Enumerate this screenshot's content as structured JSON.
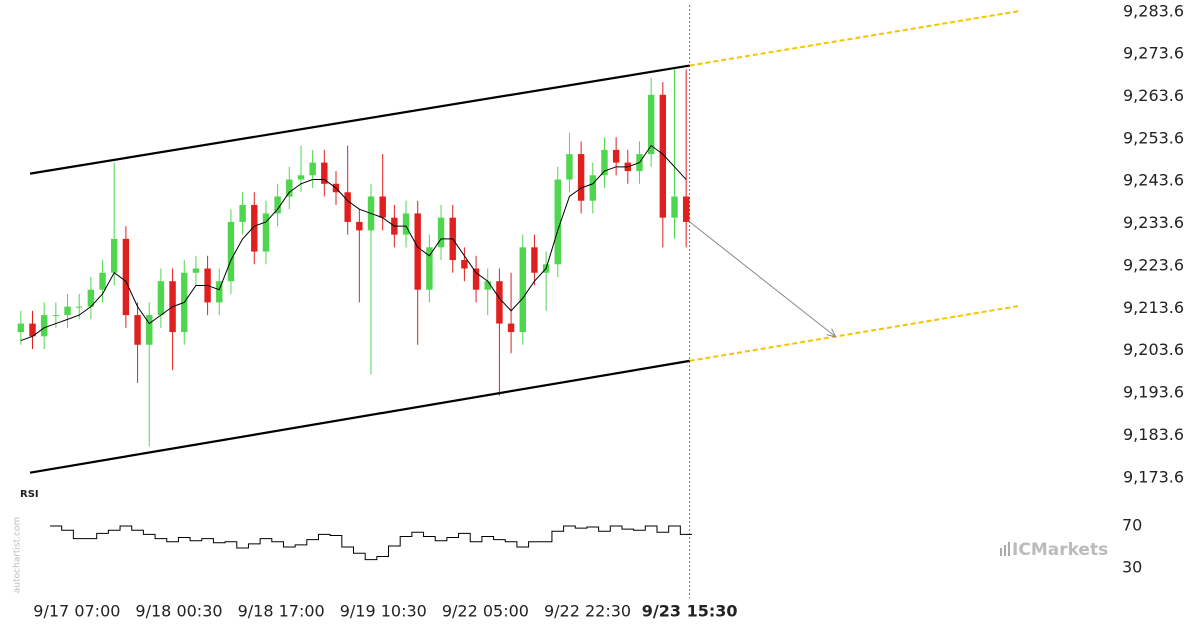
{
  "chart_data": {
    "type": "candlestick",
    "candles": {
      "color_up": "#4fd64f",
      "color_down": "#e0201f",
      "x": [
        0.5,
        1.5,
        2.5,
        3.5,
        4.5,
        5.5,
        6.5,
        7.5,
        8.5,
        9.5,
        10.5,
        11.5,
        12.5,
        13.5,
        14.5,
        15.5,
        16.5,
        17.5,
        18.5,
        19.5,
        20.5,
        21.5,
        22.5,
        23.5,
        24.5,
        25.5,
        26.5,
        27.5,
        28.5,
        29.5,
        30.5,
        31.5,
        32.5,
        33.5,
        34.5,
        35.5,
        36.5,
        37.5,
        38.5,
        39.5,
        40.5,
        41.5,
        42.5,
        43.5,
        44.5,
        45.5,
        46.5,
        47.5,
        48.5,
        49.5,
        50.5,
        51.5,
        52.5,
        53.5,
        54.5,
        55.5,
        56.5,
        57.5
      ],
      "open": [
        9208,
        9210,
        9207,
        9212,
        9212,
        9214,
        9214,
        9218,
        9222,
        9230,
        9212,
        9205,
        9212,
        9220,
        9208,
        9222,
        9223,
        9215,
        9220,
        9234,
        9238,
        9227,
        9236,
        9240,
        9244,
        9245,
        9248,
        9243,
        9241,
        9234,
        9232,
        9240,
        9235,
        9231,
        9236,
        9218,
        9228,
        9235,
        9225,
        9223,
        9218,
        9220,
        9210,
        9208,
        9228,
        9222,
        9224,
        9244,
        9250,
        9239,
        9245,
        9251,
        9248,
        9246,
        9250,
        9264,
        9235,
        9240
      ],
      "high": [
        9213,
        9213,
        9215,
        9215,
        9217,
        9217,
        9221,
        9225,
        9248,
        9233,
        9215,
        9215,
        9223,
        9223,
        9225,
        9226,
        9226,
        9223,
        9237,
        9241,
        9241,
        9239,
        9243,
        9247,
        9252,
        9251,
        9251,
        9246,
        9252,
        9237,
        9243,
        9250,
        9238,
        9239,
        9239,
        9231,
        9238,
        9238,
        9228,
        9226,
        9223,
        9223,
        9222,
        9231,
        9231,
        9227,
        9247,
        9255,
        9253,
        9248,
        9254,
        9254,
        9251,
        9253,
        9268,
        9267,
        9270,
        9270
      ],
      "low": [
        9205,
        9204,
        9204,
        9209,
        9209,
        9211,
        9211,
        9215,
        9219,
        9209,
        9196,
        9181,
        9209,
        9199,
        9205,
        9219,
        9212,
        9212,
        9217,
        9231,
        9224,
        9224,
        9233,
        9237,
        9241,
        9242,
        9240,
        9238,
        9231,
        9215,
        9198,
        9232,
        9228,
        9228,
        9205,
        9215,
        9225,
        9222,
        9220,
        9215,
        9212,
        9193,
        9203,
        9205,
        9219,
        9213,
        9221,
        9241,
        9236,
        9236,
        9242,
        9245,
        9243,
        9243,
        9247,
        9228,
        9230,
        9228
      ],
      "close": [
        9210,
        9207,
        9212,
        9212,
        9214,
        9214,
        9218,
        9222,
        9230,
        9212,
        9205,
        9212,
        9220,
        9208,
        9222,
        9223,
        9215,
        9220,
        9234,
        9238,
        9227,
        9236,
        9240,
        9244,
        9245,
        9248,
        9243,
        9241,
        9234,
        9232,
        9240,
        9235,
        9231,
        9236,
        9218,
        9228,
        9235,
        9225,
        9223,
        9218,
        9220,
        9210,
        9208,
        9228,
        9222,
        9224,
        9244,
        9250,
        9239,
        9245,
        9251,
        9248,
        9246,
        9250,
        9264,
        9235,
        9240,
        9234
      ]
    },
    "moving_average": {
      "color": "#000000",
      "values": [
        9206,
        9207,
        9209,
        9210,
        9211,
        9212,
        9214,
        9217,
        9222,
        9220,
        9214,
        9210,
        9212,
        9214,
        9215,
        9219,
        9219,
        9218,
        9225,
        9230,
        9233,
        9234,
        9237,
        9241,
        9243,
        9244,
        9244,
        9242,
        9239,
        9237,
        9236,
        9235,
        9233,
        9233,
        9228,
        9226,
        9230,
        9230,
        9226,
        9222,
        9220,
        9216,
        9213,
        9216,
        9220,
        9223,
        9232,
        9240,
        9242,
        9243,
        9246,
        9247,
        9247,
        9248,
        9252,
        9250,
        9247,
        9244
      ]
    },
    "channel": [
      {
        "color": "#000000",
        "x": [
          1.29,
          57.8
        ],
        "y": [
          9245.4,
          9270.9
        ]
      },
      {
        "color": "#000000",
        "x": [
          1.29,
          57.8
        ],
        "y": [
          9174.8,
          9201.2
        ]
      }
    ],
    "projection": [
      {
        "color": "#f5c400",
        "x": [
          57.8,
          86.1
        ],
        "y": [
          9270.9,
          9283.8
        ]
      },
      {
        "color": "#f5c400",
        "x": [
          57.8,
          86.1
        ],
        "y": [
          9201.2,
          9214.2
        ]
      }
    ],
    "forecast_arrow": {
      "color": "#888888",
      "x": [
        57.8,
        70.3
      ],
      "y": [
        9234.0,
        9206.9
      ]
    },
    "xlim": [
      0,
      86.1
    ],
    "ylim": [
      9171.9,
      9285.2
    ],
    "xticks": [
      {
        "value": 5.3,
        "label": "9/17 07:00"
      },
      {
        "value": 14.05,
        "label": "9/18 00:30"
      },
      {
        "value": 22.8,
        "label": "9/18 17:00"
      },
      {
        "value": 31.55,
        "label": "9/19 10:30"
      },
      {
        "value": 40.3,
        "label": "9/22 05:00"
      },
      {
        "value": 49.05,
        "label": "9/22 22:30"
      },
      {
        "value": 57.8,
        "label": "9/23 15:30"
      }
    ],
    "yticks": [
      {
        "value": 9173.6,
        "label": "9,173.6"
      },
      {
        "value": 9183.6,
        "label": "9,183.6"
      },
      {
        "value": 9193.6,
        "label": "9,193.6"
      },
      {
        "value": 9203.6,
        "label": "9,203.6"
      },
      {
        "value": 9213.6,
        "label": "9,213.6"
      },
      {
        "value": 9223.6,
        "label": "9,223.6"
      },
      {
        "value": 9233.6,
        "label": "9,233.6"
      },
      {
        "value": 9243.6,
        "label": "9,243.6"
      },
      {
        "value": 9253.6,
        "label": "9,253.6"
      },
      {
        "value": 9263.6,
        "label": "9,263.6"
      },
      {
        "value": 9273.6,
        "label": "9,273.6"
      },
      {
        "value": 9283.6,
        "label": "9,283.6"
      }
    ],
    "rsi": {
      "label": "RSI",
      "color": "#000000",
      "ylim": [
        20,
        80
      ],
      "yticks": [
        70,
        30
      ],
      "values": [
        null,
        null,
        null,
        70,
        66,
        58,
        58,
        63,
        66,
        70,
        66,
        62,
        58,
        55,
        59,
        56,
        58,
        54,
        55,
        49,
        53,
        58,
        55,
        50,
        52,
        57,
        62,
        61,
        50,
        44,
        38,
        41,
        51,
        60,
        64,
        60,
        56,
        59,
        63,
        55,
        60,
        57,
        55,
        50,
        55,
        55,
        65,
        70,
        68,
        69,
        65,
        70,
        67,
        66,
        70,
        64,
        70,
        62
      ]
    },
    "watermark": "autochartist.com",
    "brand": {
      "prefix": "IC",
      "name": "Markets"
    }
  }
}
